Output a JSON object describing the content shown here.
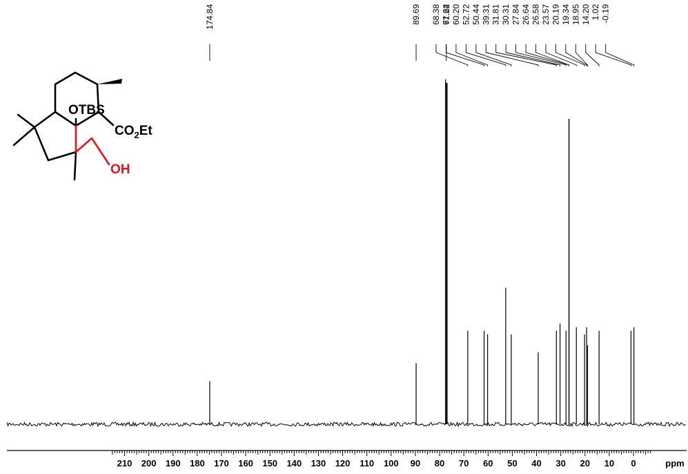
{
  "chart_data": {
    "type": "line",
    "xlabel": "ppm",
    "xlim": [
      215,
      -7
    ],
    "x_reversed": true,
    "ticks": [
      210,
      200,
      190,
      180,
      170,
      160,
      150,
      140,
      130,
      120,
      110,
      100,
      90,
      80,
      70,
      60,
      50,
      40,
      30,
      20,
      10,
      0
    ],
    "tick_labels": [
      "210",
      "200",
      "190",
      "180",
      "170",
      "160",
      "150",
      "140",
      "130",
      "120",
      "110",
      "100",
      "90",
      "80",
      "70",
      "60",
      "50",
      "40",
      "30",
      "20",
      "10",
      "0"
    ],
    "peak_labels": [
      "174.84",
      "89.69",
      "77.22",
      "68.38",
      "61.64",
      "60.20",
      "52.72",
      "50.44",
      "39.31",
      "31.81",
      "30.31",
      "27.84",
      "26.64",
      "26.58",
      "23.57",
      "20.19",
      "19.34",
      "18.95",
      "14.20",
      "1.02",
      "-0.19"
    ],
    "peaks": [
      {
        "ppm": 174.84,
        "intensity": 0.12
      },
      {
        "ppm": 89.69,
        "intensity": 0.17
      },
      {
        "ppm": 77.54,
        "intensity": 0.96
      },
      {
        "ppm": 77.22,
        "intensity": 0.95
      },
      {
        "ppm": 76.9,
        "intensity": 0.95
      },
      {
        "ppm": 68.38,
        "intensity": 0.26
      },
      {
        "ppm": 61.64,
        "intensity": 0.26
      },
      {
        "ppm": 60.2,
        "intensity": 0.25
      },
      {
        "ppm": 52.72,
        "intensity": 0.38
      },
      {
        "ppm": 50.44,
        "intensity": 0.25
      },
      {
        "ppm": 39.31,
        "intensity": 0.2
      },
      {
        "ppm": 31.81,
        "intensity": 0.26
      },
      {
        "ppm": 30.31,
        "intensity": 0.28
      },
      {
        "ppm": 27.84,
        "intensity": 0.26
      },
      {
        "ppm": 26.64,
        "intensity": 0.85
      },
      {
        "ppm": 26.58,
        "intensity": 0.85
      },
      {
        "ppm": 23.57,
        "intensity": 0.27
      },
      {
        "ppm": 20.19,
        "intensity": 0.25
      },
      {
        "ppm": 19.34,
        "intensity": 0.27
      },
      {
        "ppm": 18.95,
        "intensity": 0.22
      },
      {
        "ppm": 14.2,
        "intensity": 0.26
      },
      {
        "ppm": 1.02,
        "intensity": 0.26
      },
      {
        "ppm": -0.19,
        "intensity": 0.27
      }
    ]
  },
  "structure": {
    "labels": {
      "otbs": "OTBS",
      "co2et_co": "CO",
      "co2et_sub": "2",
      "co2et_et": "Et",
      "oh": "OH"
    },
    "colors": {
      "bond": "#000000",
      "highlight": "#e8141a"
    }
  }
}
